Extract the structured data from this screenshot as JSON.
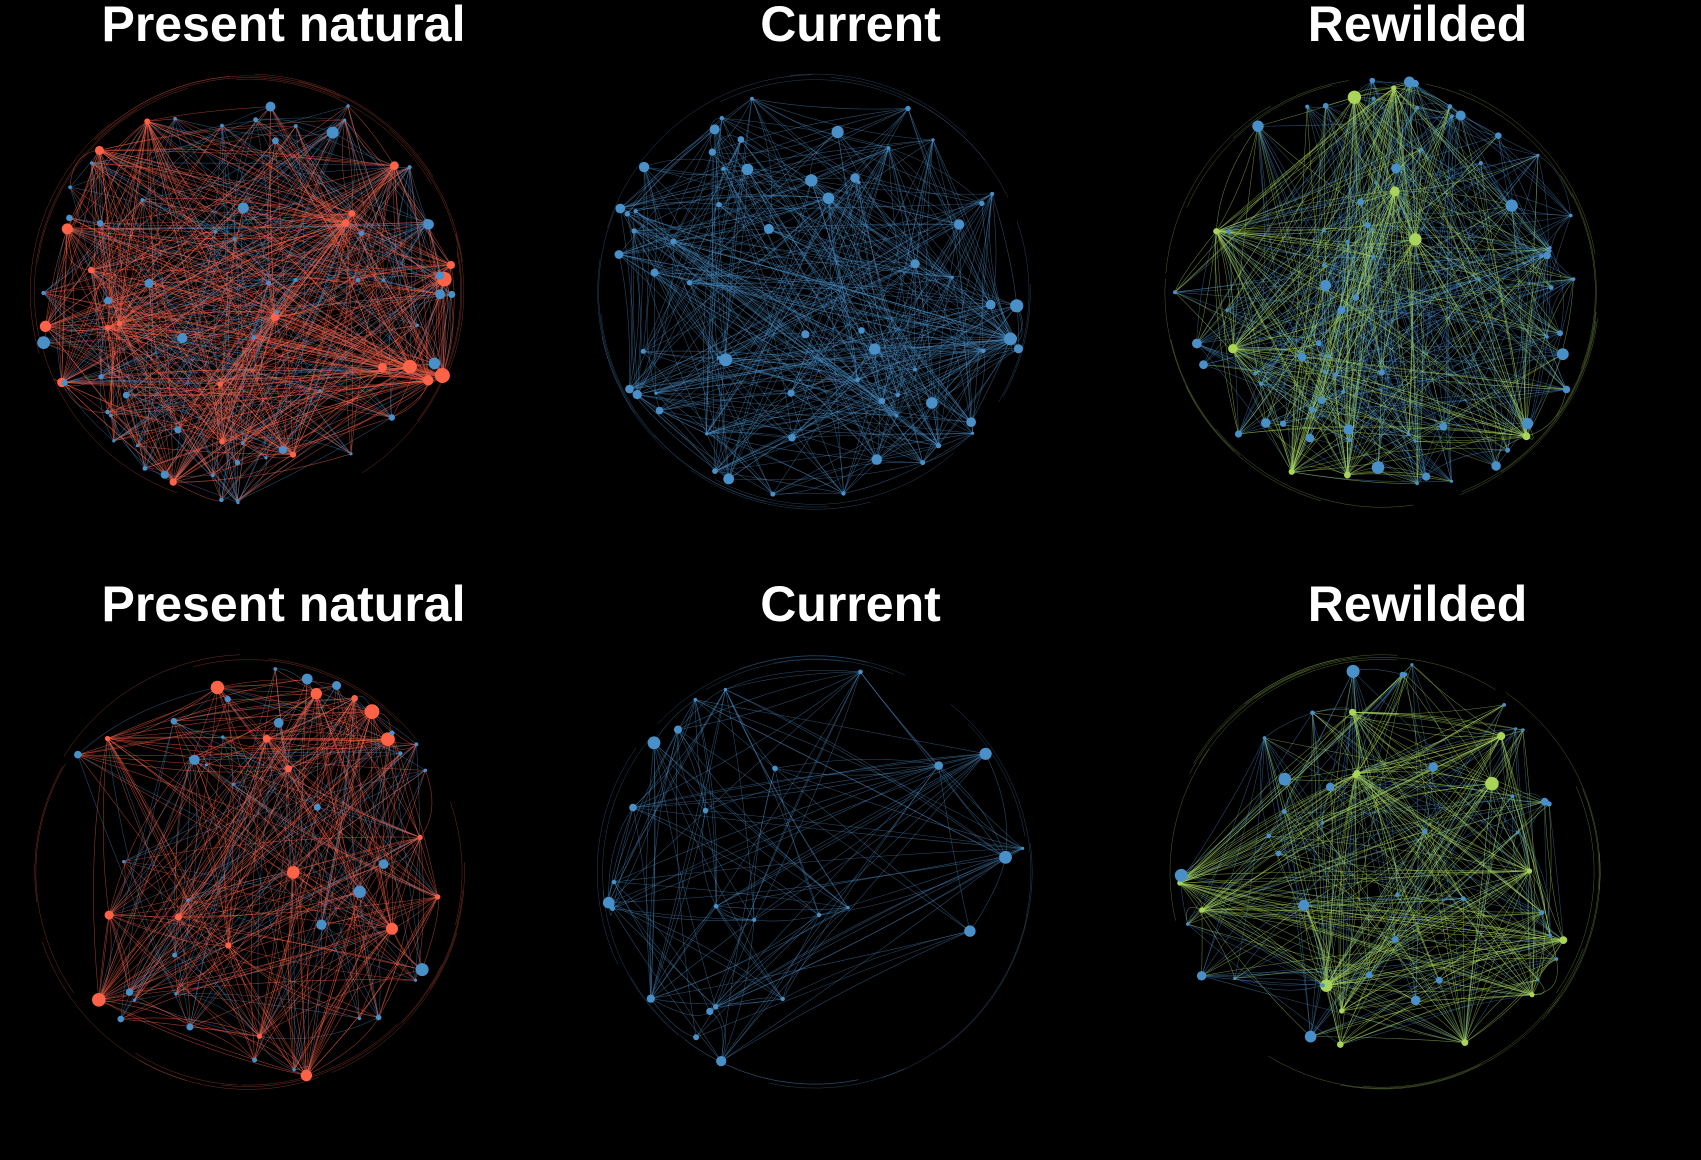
{
  "colors": {
    "background": "#000000",
    "present_natural": "#ff6347",
    "current": "#4a90c8",
    "rewilded": "#a8d45a"
  },
  "panels": [
    {
      "id": "top-present-natural",
      "title": "Present natural",
      "color_key": "present_natural",
      "nodes": 80,
      "highlight_nodes": 22,
      "edges": 760,
      "highlight_edges": 480
    },
    {
      "id": "top-current",
      "title": "Current",
      "color_key": "current",
      "nodes": 66,
      "highlight_nodes": 0,
      "edges": 480,
      "highlight_edges": 0
    },
    {
      "id": "top-rewilded",
      "title": "Rewilded",
      "color_key": "rewilded",
      "nodes": 82,
      "highlight_nodes": 9,
      "edges": 720,
      "highlight_edges": 300
    },
    {
      "id": "bottom-present-natural",
      "title": "Present natural",
      "color_key": "present_natural",
      "nodes": 52,
      "highlight_nodes": 18,
      "edges": 420,
      "highlight_edges": 300
    },
    {
      "id": "bottom-current",
      "title": "Current",
      "color_key": "current",
      "nodes": 26,
      "highlight_nodes": 0,
      "edges": 150,
      "highlight_edges": 0
    },
    {
      "id": "bottom-rewilded",
      "title": "Rewilded",
      "color_key": "rewilded",
      "nodes": 52,
      "highlight_nodes": 14,
      "edges": 460,
      "highlight_edges": 300
    }
  ]
}
